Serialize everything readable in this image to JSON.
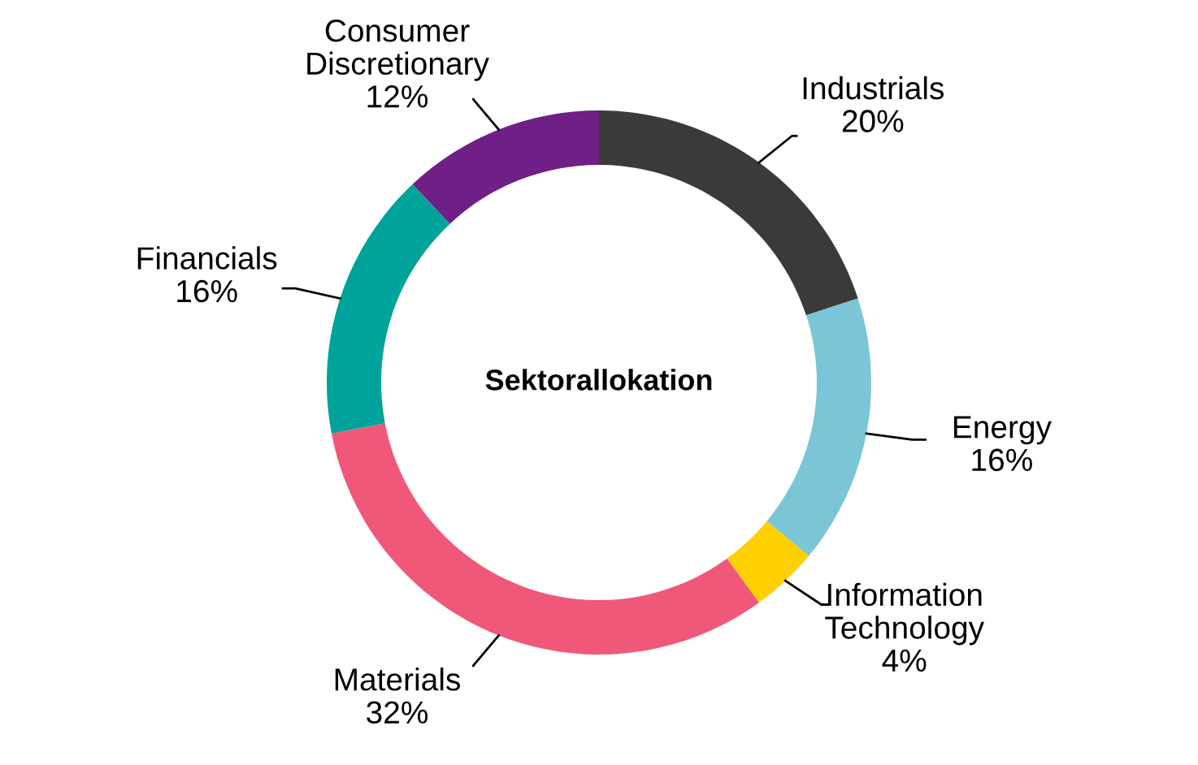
{
  "chart_data": {
    "type": "donut",
    "title": "Sektorallokation",
    "categories": [
      "Industrials",
      "Energy",
      "Information Technology",
      "Materials",
      "Financials",
      "Consumer Discretionary"
    ],
    "values": [
      20,
      16,
      4,
      32,
      16,
      12
    ],
    "colors": [
      "#3a3b38",
      "#7ac6d6",
      "#ffd000",
      "#f0587a",
      "#00a399",
      "#6f1f85"
    ],
    "value_labels": [
      "20%",
      "16%",
      "4%",
      "32%",
      "16%",
      "12%"
    ]
  }
}
